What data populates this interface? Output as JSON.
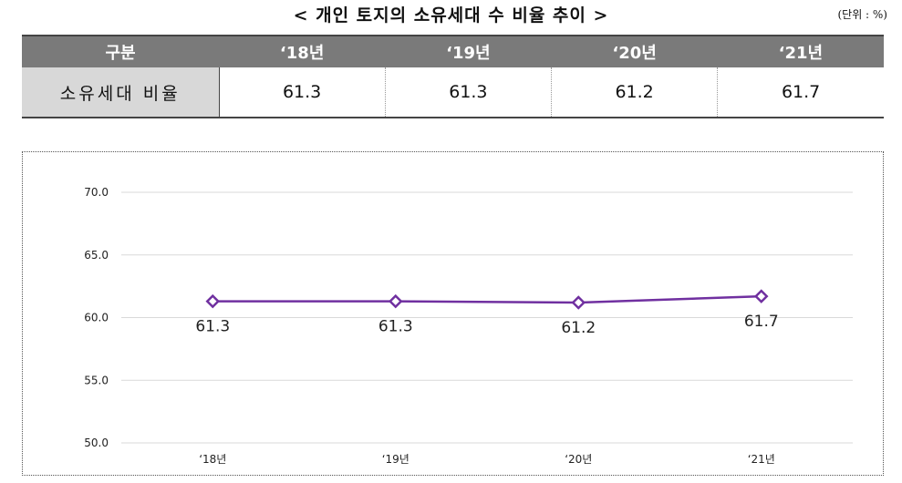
{
  "header": {
    "title": "< 개인 토지의 소유세대 수 비율 추이 >",
    "unit": "(단위 : %)"
  },
  "table": {
    "columns": [
      "구분",
      "‘18년",
      "‘19년",
      "‘20년",
      "‘21년"
    ],
    "rows": [
      {
        "label": "소유세대 비율",
        "values": [
          "61.3",
          "61.3",
          "61.2",
          "61.7"
        ]
      }
    ]
  },
  "chart_data": {
    "type": "line",
    "categories": [
      "‘18년",
      "‘19년",
      "‘20년",
      "‘21년"
    ],
    "series": [
      {
        "values": [
          61.3,
          61.3,
          61.2,
          61.7
        ],
        "color": "#7030a0"
      }
    ],
    "data_labels": [
      "61.3",
      "61.3",
      "61.2",
      "61.7"
    ],
    "yticks": [
      "70.0",
      "65.0",
      "60.0",
      "55.0",
      "50.0"
    ],
    "ylim": [
      50,
      70
    ],
    "grid": true,
    "marker": "diamond",
    "title": "",
    "xlabel": "",
    "ylabel": ""
  }
}
